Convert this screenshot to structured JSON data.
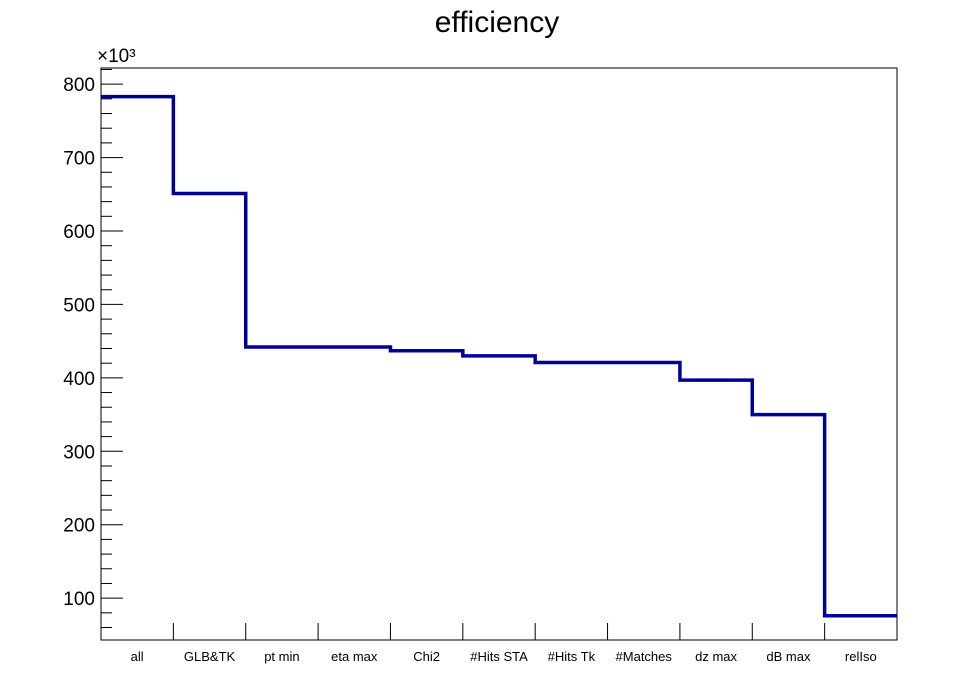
{
  "chart_data": {
    "type": "step",
    "title": "efficiency",
    "xlabel": "",
    "ylabel": "",
    "y_multiplier_label": "×10³",
    "y_multiplier": 1000,
    "categories": [
      "all",
      "GLB&TK",
      "pt min",
      "eta max",
      "Chi2",
      "#Hits STA",
      "#Hits Tk",
      "#Matches",
      "dz max",
      "dB max",
      "relIso"
    ],
    "values": [
      783000,
      651000,
      442000,
      442000,
      437000,
      430000,
      421000,
      421000,
      397000,
      350000,
      76000
    ],
    "ylim": [
      43000,
      822000
    ],
    "yticks_major": [
      100000,
      200000,
      300000,
      400000,
      500000,
      600000,
      700000,
      800000
    ],
    "ytick_labels": [
      "100",
      "200",
      "300",
      "400",
      "500",
      "600",
      "700",
      "800"
    ],
    "line_color": "#000099",
    "grid": false,
    "legend": "none"
  }
}
